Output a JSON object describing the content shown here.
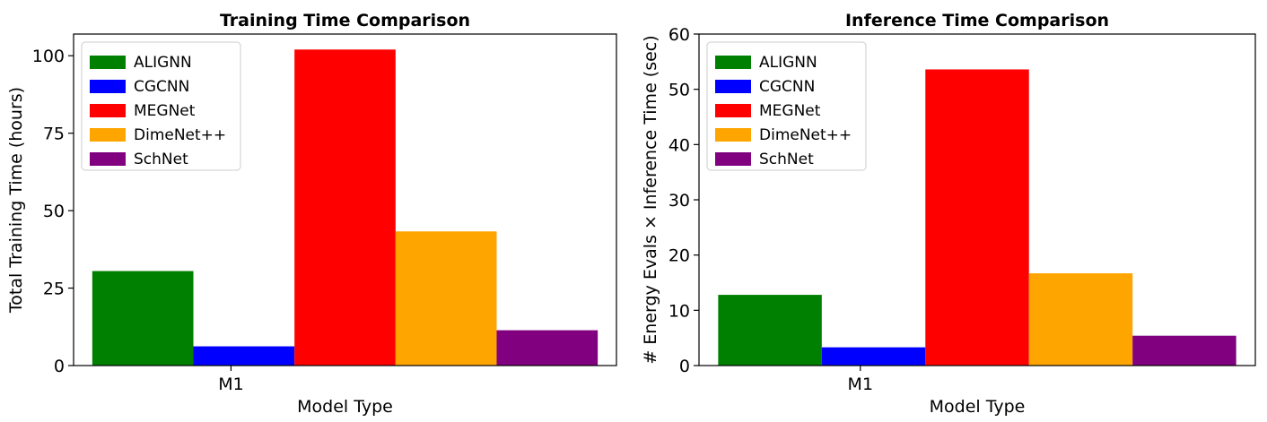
{
  "chart_data": [
    {
      "type": "bar",
      "title": "Training Time Comparison",
      "xlabel": "Model Type",
      "ylabel": "Total Training Time (hours)",
      "categories": [
        "M1"
      ],
      "ylim": [
        0,
        107
      ],
      "yticks": [
        0,
        25,
        50,
        75,
        100
      ],
      "grid": false,
      "legend_position": "top-left",
      "series": [
        {
          "name": "ALIGNN",
          "color": "#008000",
          "values": [
            30.5
          ]
        },
        {
          "name": "CGCNN",
          "color": "#0000ff",
          "values": [
            6.2
          ]
        },
        {
          "name": "MEGNet",
          "color": "#ff0000",
          "values": [
            102
          ]
        },
        {
          "name": "DimeNet++",
          "color": "#ffa500",
          "values": [
            43.3
          ]
        },
        {
          "name": "SchNet",
          "color": "#800080",
          "values": [
            11.4
          ]
        }
      ]
    },
    {
      "type": "bar",
      "title": "Inference Time Comparison",
      "xlabel": "Model Type",
      "ylabel": "# Energy Evals × Inference Time (sec)",
      "categories": [
        "M1"
      ],
      "ylim": [
        0,
        60
      ],
      "yticks": [
        0,
        10,
        20,
        30,
        40,
        50,
        60
      ],
      "grid": false,
      "legend_position": "top-left",
      "series": [
        {
          "name": "ALIGNN",
          "color": "#008000",
          "values": [
            12.8
          ]
        },
        {
          "name": "CGCNN",
          "color": "#0000ff",
          "values": [
            3.3
          ]
        },
        {
          "name": "MEGNet",
          "color": "#ff0000",
          "values": [
            53.6
          ]
        },
        {
          "name": "DimeNet++",
          "color": "#ffa500",
          "values": [
            16.7
          ]
        },
        {
          "name": "SchNet",
          "color": "#800080",
          "values": [
            5.4
          ]
        }
      ]
    }
  ]
}
